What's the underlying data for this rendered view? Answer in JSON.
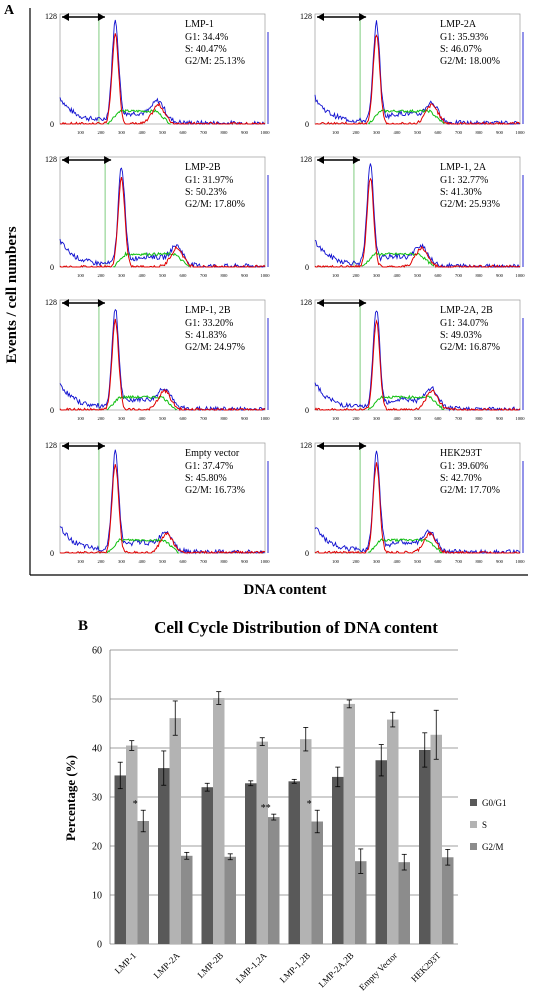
{
  "panel_a": {
    "label": "A",
    "ylabel": "Events / cell numbers",
    "xlabel": "DNA content",
    "y_top_tick": "128",
    "y_zero_tick": "0",
    "x_ticks": [
      "100",
      "200",
      "300",
      "400",
      "500",
      "600",
      "700",
      "800",
      "900",
      "1000"
    ],
    "histograms": [
      {
        "name": "LMP-1",
        "lines": [
          "G1: 34.4%",
          "S: 40.47%",
          "G2/M: 25.13%"
        ],
        "g1_peak": 270,
        "g2_peak": 480
      },
      {
        "name": "LMP-2A",
        "lines": [
          "G1: 35.93%",
          "S: 46.07%",
          "G2/M: 18.00%"
        ],
        "g1_peak": 300,
        "g2_peak": 570
      },
      {
        "name": "LMP-2B",
        "lines": [
          "G1: 31.97%",
          "S: 50.23%",
          "G2/M: 17.80%"
        ],
        "g1_peak": 300,
        "g2_peak": 570
      },
      {
        "name": "LMP-1, 2A",
        "lines": [
          "G1: 32.77%",
          "S: 41.30%",
          "G2/M: 25.93%"
        ],
        "g1_peak": 270,
        "g2_peak": 520
      },
      {
        "name": "LMP-1, 2B",
        "lines": [
          "G1: 33.20%",
          "S: 41.83%",
          "G2/M: 24.97%"
        ],
        "g1_peak": 270,
        "g2_peak": 510
      },
      {
        "name": "LMP-2A, 2B",
        "lines": [
          "G1: 34.07%",
          "S: 49.03%",
          "G2/M: 16.87%"
        ],
        "g1_peak": 300,
        "g2_peak": 570
      },
      {
        "name": "Empty vector",
        "lines": [
          "G1: 37.47%",
          "S: 45.80%",
          "G2/M: 16.73%"
        ],
        "g1_peak": 270,
        "g2_peak": 520
      },
      {
        "name": "HEK293T",
        "lines": [
          "G1: 39.60%",
          "S: 42.70%",
          "G2/M: 17.70%"
        ],
        "g1_peak": 300,
        "g2_peak": 560
      }
    ],
    "colors": {
      "events": "#1010d0",
      "fit": "#e00000",
      "s_phase": "#10c010",
      "gate": "#60c060"
    }
  },
  "chart_data": {
    "type": "bar",
    "label": "B",
    "title": "Cell Cycle Distribution of DNA content",
    "xlabel": "",
    "ylabel": "Percentage (%)",
    "ylim": [
      0,
      60
    ],
    "yticks": [
      "0",
      "10",
      "20",
      "30",
      "40",
      "50",
      "60"
    ],
    "grid": true,
    "legend_position": "right",
    "categories": [
      "LMP-1",
      "LMP-2A",
      "LMP-2B",
      "LMP-1,2A",
      "LMP-1,2B",
      "LMP-2A,2B",
      "Empty Vector",
      "HEK293T"
    ],
    "series": [
      {
        "name": "G0/G1",
        "color": "#595959",
        "values": [
          34.4,
          35.9,
          32.0,
          32.8,
          33.2,
          34.1,
          37.5,
          39.6
        ],
        "errors": [
          2.7,
          3.5,
          0.8,
          0.5,
          0.4,
          2.0,
          3.2,
          3.5
        ]
      },
      {
        "name": "S",
        "color": "#b3b3b3",
        "values": [
          40.5,
          46.1,
          50.2,
          41.3,
          41.8,
          49.0,
          45.8,
          42.7
        ],
        "errors": [
          1.0,
          3.5,
          1.3,
          0.8,
          2.4,
          0.8,
          1.5,
          5.0
        ]
      },
      {
        "name": "G2/M",
        "color": "#8c8c8c",
        "values": [
          25.1,
          18.0,
          17.8,
          25.9,
          25.0,
          16.9,
          16.7,
          17.7
        ],
        "errors": [
          2.2,
          0.7,
          0.6,
          0.6,
          2.3,
          2.5,
          1.6,
          1.6
        ]
      }
    ],
    "annotations": [
      {
        "category": "LMP-1",
        "series": "G2/M",
        "text": "*"
      },
      {
        "category": "LMP-1,2A",
        "series": "G2/M",
        "text": "**"
      },
      {
        "category": "LMP-1,2B",
        "series": "G2/M",
        "text": "*"
      }
    ]
  }
}
